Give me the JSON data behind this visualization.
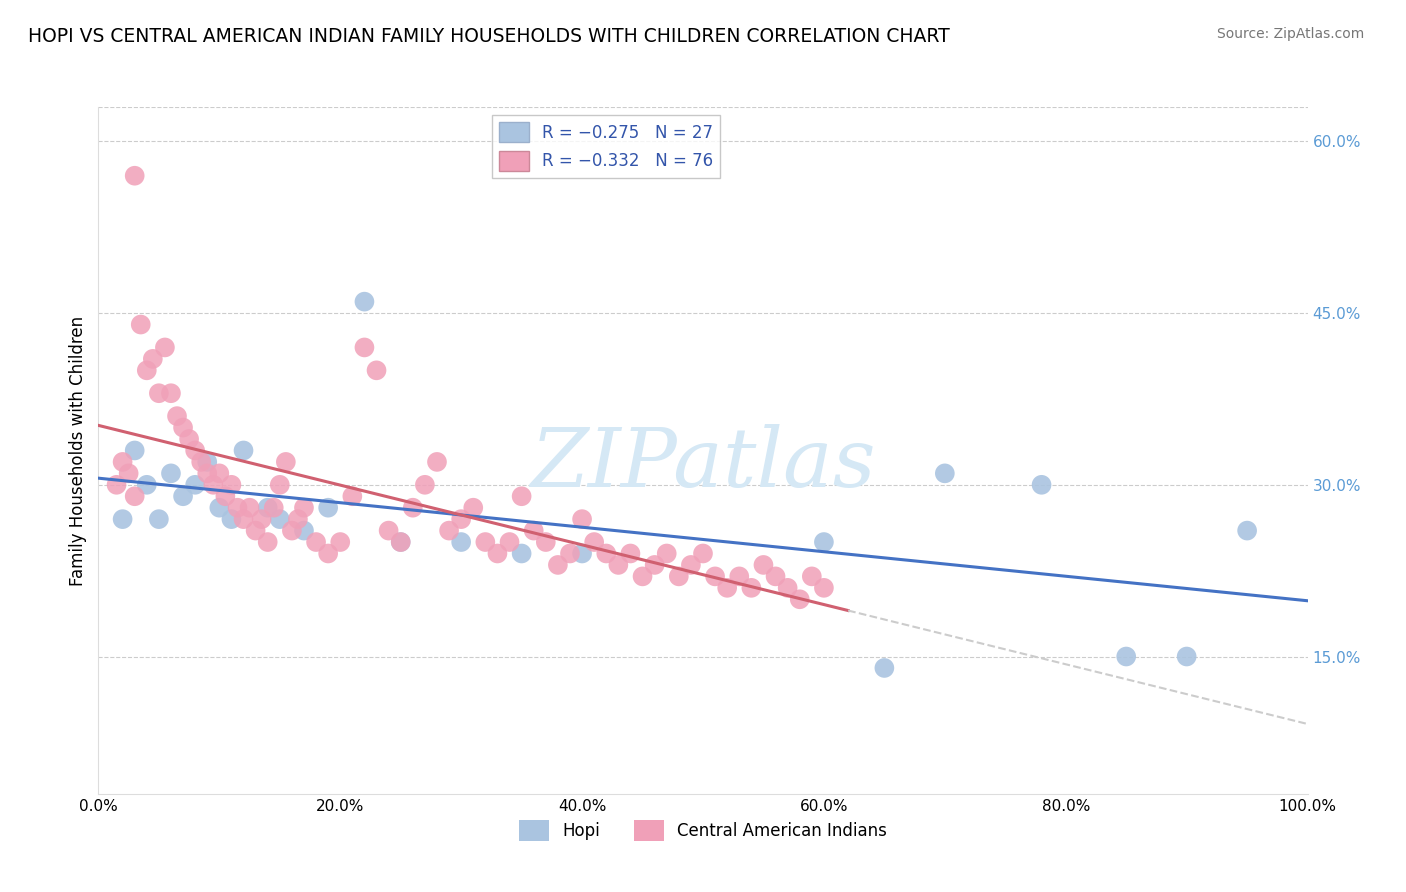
{
  "title": "HOPI VS CENTRAL AMERICAN INDIAN FAMILY HOUSEHOLDS WITH CHILDREN CORRELATION CHART",
  "source": "Source: ZipAtlas.com",
  "ylabel": "Family Households with Children",
  "xlim": [
    0,
    100
  ],
  "ylim": [
    3,
    63
  ],
  "yticks": [
    15,
    30,
    45,
    60
  ],
  "xticks": [
    0,
    20,
    40,
    60,
    80,
    100
  ],
  "hopi_R": -0.275,
  "hopi_N": 27,
  "ca_R": -0.332,
  "ca_N": 76,
  "hopi_color": "#aac4e0",
  "ca_color": "#f0a0b8",
  "hopi_line_color": "#4472c4",
  "ca_line_color": "#d06070",
  "ca_dash_color": "#cccccc",
  "watermark_color": "#d5e8f5",
  "legend_series_labels": [
    "Hopi",
    "Central American Indians"
  ],
  "figsize": [
    14.06,
    8.92
  ],
  "dpi": 100,
  "hopi_x": [
    2,
    3,
    4,
    5,
    6,
    7,
    8,
    9,
    10,
    11,
    12,
    14,
    15,
    17,
    19,
    22,
    25,
    30,
    35,
    40,
    60,
    65,
    70,
    78,
    85,
    90,
    95
  ],
  "hopi_y": [
    27,
    33,
    30,
    27,
    31,
    29,
    30,
    32,
    28,
    27,
    33,
    28,
    27,
    26,
    28,
    46,
    25,
    25,
    24,
    24,
    25,
    14,
    31,
    30,
    15,
    15,
    26
  ],
  "ca_x": [
    1.5,
    2,
    2.5,
    3,
    3.5,
    4,
    4.5,
    5,
    5.5,
    6,
    6.5,
    7,
    7.5,
    8,
    8.5,
    9,
    9.5,
    10,
    10.5,
    11,
    11.5,
    12,
    12.5,
    13,
    13.5,
    14,
    14.5,
    15,
    15.5,
    16,
    16.5,
    17,
    18,
    19,
    20,
    21,
    22,
    23,
    24,
    25,
    26,
    27,
    28,
    29,
    30,
    31,
    32,
    33,
    34,
    35,
    36,
    37,
    38,
    39,
    40,
    41,
    42,
    43,
    44,
    45,
    46,
    47,
    48,
    49,
    50,
    51,
    52,
    53,
    54,
    55,
    56,
    57,
    58,
    59,
    60,
    3
  ],
  "ca_y": [
    30,
    32,
    31,
    29,
    44,
    40,
    41,
    38,
    42,
    38,
    36,
    35,
    34,
    33,
    32,
    31,
    30,
    31,
    29,
    30,
    28,
    27,
    28,
    26,
    27,
    25,
    28,
    30,
    32,
    26,
    27,
    28,
    25,
    24,
    25,
    29,
    42,
    40,
    26,
    25,
    28,
    30,
    32,
    26,
    27,
    28,
    25,
    24,
    25,
    29,
    26,
    25,
    23,
    24,
    27,
    25,
    24,
    23,
    24,
    22,
    23,
    24,
    22,
    23,
    24,
    22,
    21,
    22,
    21,
    23,
    22,
    21,
    20,
    22,
    21,
    57
  ]
}
